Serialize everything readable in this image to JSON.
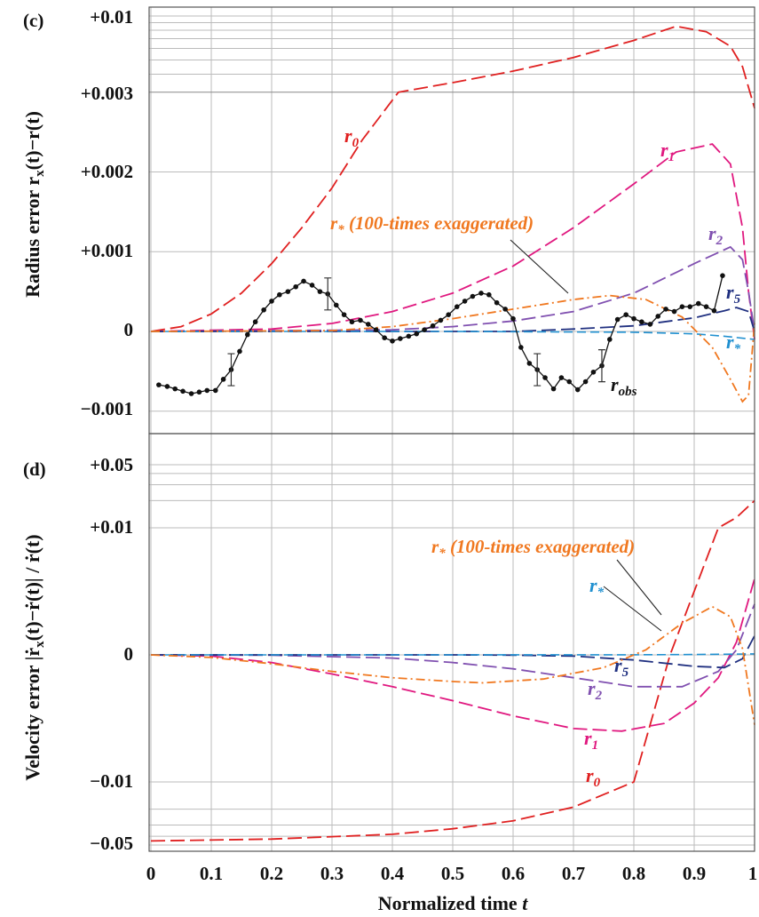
{
  "chart_data": [
    {
      "panel_label": "(c)",
      "type": "line",
      "ylabel": "Radius error r_x(t)−r(t)",
      "xlabel": "Normalized time t",
      "xlim": [
        0,
        1
      ],
      "ylim": [
        -0.0013,
        0.01
      ],
      "y_scale": "piecewise: linear from -0.0013 to +0.003, log-compressed from +0.003 to +0.01",
      "grid": true,
      "y_tick_labels": [
        "+0.01",
        "+0.003",
        "+0.002",
        "+0.001",
        "0",
        "−0.001"
      ],
      "x_tick_labels": [
        "0",
        "0.1",
        "0.2",
        "0.3",
        "0.4",
        "0.5",
        "0.6",
        "0.7",
        "0.8",
        "0.9",
        "1"
      ],
      "series": [
        {
          "name": "r0",
          "color": "#e02020",
          "style": "long-dash",
          "x": [
            0,
            0.05,
            0.1,
            0.15,
            0.2,
            0.25,
            0.3,
            0.35,
            0.41,
            0.5,
            0.6,
            0.7,
            0.8,
            0.87,
            0.92,
            0.96,
            0.98,
            1.0
          ],
          "y": [
            0,
            6e-05,
            0.00022,
            0.00048,
            0.00085,
            0.0013,
            0.0018,
            0.0024,
            0.003,
            0.0035,
            0.0042,
            0.0052,
            0.0068,
            0.0085,
            0.0078,
            0.0062,
            0.0045,
            0.0028
          ]
        },
        {
          "name": "r1",
          "color": "#e0187f",
          "style": "long-dash",
          "x": [
            0,
            0.2,
            0.3,
            0.4,
            0.5,
            0.6,
            0.7,
            0.8,
            0.87,
            0.93,
            0.96,
            0.98,
            0.99,
            1.0
          ],
          "y": [
            0,
            3e-05,
            0.0001,
            0.00025,
            0.00048,
            0.00082,
            0.0013,
            0.00185,
            0.00225,
            0.00235,
            0.0021,
            0.0013,
            0.0005,
            -0.0001
          ]
        },
        {
          "name": "r2",
          "color": "#8050b0",
          "style": "long-dash",
          "x": [
            0,
            0.4,
            0.5,
            0.6,
            0.7,
            0.8,
            0.9,
            0.96,
            0.98,
            0.99,
            1.0
          ],
          "y": [
            0,
            2e-05,
            6e-05,
            0.00013,
            0.00025,
            0.00048,
            0.00085,
            0.00106,
            0.0009,
            0.0005,
            0.0
          ]
        },
        {
          "name": "r5",
          "color": "#203080",
          "style": "long-dash",
          "x": [
            0,
            0.6,
            0.7,
            0.8,
            0.9,
            0.95,
            0.97,
            0.99,
            1.0
          ],
          "y": [
            0,
            0.0,
            3e-05,
            7e-05,
            0.00017,
            0.00026,
            0.0003,
            0.00025,
            0.0
          ]
        },
        {
          "name": "r*",
          "color": "#2090d0",
          "style": "dash",
          "x": [
            0,
            0.5,
            0.8,
            0.9,
            0.95,
            1.0
          ],
          "y": [
            0,
            0.0,
            -1e-05,
            -3e-05,
            -6e-05,
            -0.0001
          ]
        },
        {
          "name": "r* (100-times exaggerated)",
          "color": "#f07820",
          "style": "dash-dot",
          "x": [
            0,
            0.3,
            0.4,
            0.5,
            0.6,
            0.7,
            0.76,
            0.82,
            0.88,
            0.93,
            0.96,
            0.98,
            0.99,
            1.0
          ],
          "y": [
            0,
            1e-05,
            6e-05,
            0.00016,
            0.00028,
            0.0004,
            0.00045,
            0.0004,
            0.00018,
            -0.0002,
            -0.0006,
            -0.00088,
            -0.0008,
            0.0001
          ]
        },
        {
          "name": "robs",
          "color": "#111111",
          "style": "solid-with-dots",
          "x": [
            0.013,
            0.027,
            0.04,
            0.053,
            0.067,
            0.08,
            0.093,
            0.107,
            0.12,
            0.133,
            0.147,
            0.16,
            0.173,
            0.187,
            0.2,
            0.213,
            0.227,
            0.24,
            0.253,
            0.267,
            0.28,
            0.293,
            0.307,
            0.32,
            0.333,
            0.347,
            0.36,
            0.373,
            0.387,
            0.4,
            0.413,
            0.427,
            0.44,
            0.453,
            0.467,
            0.48,
            0.493,
            0.507,
            0.52,
            0.533,
            0.547,
            0.56,
            0.573,
            0.587,
            0.6,
            0.613,
            0.627,
            0.64,
            0.653,
            0.667,
            0.68,
            0.693,
            0.707,
            0.72,
            0.733,
            0.747,
            0.76,
            0.773,
            0.787,
            0.8,
            0.813,
            0.827,
            0.84,
            0.853,
            0.867,
            0.88,
            0.893,
            0.907,
            0.92,
            0.933,
            0.947
          ],
          "y": [
            -0.00067,
            -0.00069,
            -0.00072,
            -0.00075,
            -0.00078,
            -0.00076,
            -0.00074,
            -0.00074,
            -0.0006,
            -0.00048,
            -0.00025,
            -4e-05,
            0.00012,
            0.00027,
            0.00038,
            0.00046,
            0.0005,
            0.00056,
            0.00063,
            0.00058,
            0.0005,
            0.00047,
            0.00033,
            0.00021,
            0.00012,
            0.00014,
            9e-05,
            2e-05,
            -8e-05,
            -0.00012,
            -9e-05,
            -6e-05,
            -3e-05,
            2e-05,
            7e-05,
            0.00014,
            0.00021,
            0.00031,
            0.00038,
            0.00044,
            0.00048,
            0.00046,
            0.00036,
            0.00028,
            0.00016,
            -0.0002,
            -0.0004,
            -0.00048,
            -0.00058,
            -0.00072,
            -0.00058,
            -0.00063,
            -0.00073,
            -0.00063,
            -0.00051,
            -0.00043,
            -0.0001,
            0.00015,
            0.00021,
            0.00016,
            0.00012,
            9e-05,
            0.00019,
            0.00028,
            0.00025,
            0.00031,
            0.00031,
            0.00035,
            0.00031,
            0.00026,
            0.0007
          ],
          "error_bars_at_x": [
            0.133,
            0.293,
            0.64,
            0.747
          ]
        }
      ],
      "annotations": [
        "r0",
        "r1",
        "r2",
        "r5",
        "r*",
        "robs",
        "r* (100-times exaggerated)"
      ]
    },
    {
      "panel_label": "(d)",
      "type": "line",
      "ylabel": "Velocity error |ṙ_x(t)−ṙ(t)| / ṙ(t)",
      "xlabel": "Normalized time t",
      "xlim": [
        0,
        1
      ],
      "ylim": [
        -0.05,
        0.05
      ],
      "y_scale": "piecewise: log-compressed beyond ±0.01, linear between",
      "grid": true,
      "y_tick_labels": [
        "+0.05",
        "+0.01",
        "0",
        "−0.01",
        "−0.05"
      ],
      "x_tick_labels": [
        "0",
        "0.1",
        "0.2",
        "0.3",
        "0.4",
        "0.5",
        "0.6",
        "0.7",
        "0.8",
        "0.9",
        "1"
      ],
      "series": [
        {
          "name": "r0",
          "color": "#e02020",
          "style": "long-dash",
          "x": [
            0,
            0.2,
            0.4,
            0.5,
            0.6,
            0.7,
            0.8,
            0.86,
            0.94,
            0.97,
            1.0
          ],
          "y": [
            -0.045,
            -0.043,
            -0.038,
            -0.033,
            -0.027,
            -0.019,
            -0.01,
            0.0,
            0.01,
            0.013,
            0.02
          ]
        },
        {
          "name": "r1",
          "color": "#e0187f",
          "style": "long-dash",
          "x": [
            0,
            0.1,
            0.2,
            0.3,
            0.4,
            0.5,
            0.6,
            0.7,
            0.78,
            0.85,
            0.9,
            0.94,
            0.97,
            1.0
          ],
          "y": [
            0,
            -0.0001,
            -0.0006,
            -0.0015,
            -0.0025,
            -0.0036,
            -0.0048,
            -0.0058,
            -0.006,
            -0.0054,
            -0.0038,
            -0.0018,
            0.001,
            0.006
          ]
        },
        {
          "name": "r2",
          "color": "#8050b0",
          "style": "long-dash",
          "x": [
            0,
            0.2,
            0.4,
            0.5,
            0.6,
            0.7,
            0.8,
            0.88,
            0.94,
            0.97,
            1.0
          ],
          "y": [
            0,
            -3e-05,
            -0.00025,
            -0.0006,
            -0.0011,
            -0.0018,
            -0.0025,
            -0.0025,
            -0.0013,
            0.0004,
            0.004
          ]
        },
        {
          "name": "r5",
          "color": "#203080",
          "style": "long-dash",
          "x": [
            0,
            0.5,
            0.6,
            0.7,
            0.8,
            0.9,
            0.95,
            0.98,
            1.0
          ],
          "y": [
            0,
            0.0,
            -2e-05,
            -0.0001,
            -0.0004,
            -0.0009,
            -0.001,
            -0.0003,
            0.0015
          ]
        },
        {
          "name": "r*",
          "color": "#2090d0",
          "style": "dash",
          "x": [
            0,
            0.5,
            0.8,
            0.9,
            0.95,
            1.0
          ],
          "y": [
            0,
            0.0,
            1e-05,
            3e-05,
            5e-05,
            8e-05
          ]
        },
        {
          "name": "r* (100-times exaggerated)",
          "color": "#f07820",
          "style": "dash-dot",
          "x": [
            0,
            0.1,
            0.2,
            0.3,
            0.4,
            0.5,
            0.55,
            0.65,
            0.75,
            0.82,
            0.88,
            0.93,
            0.96,
            0.98,
            1.0
          ],
          "y": [
            0,
            -0.0002,
            -0.0007,
            -0.0013,
            -0.0018,
            -0.0021,
            -0.0022,
            -0.0019,
            -0.001,
            0.0004,
            0.0025,
            0.0038,
            0.003,
            0.0005,
            -0.0055
          ]
        }
      ],
      "annotations": [
        "r0",
        "r1",
        "r2",
        "r5",
        "r*",
        "r* (100-times exaggerated)"
      ]
    }
  ],
  "text": {
    "panel_c": "(c)",
    "panel_d": "(d)",
    "ylabel_c": "Radius error r",
    "ylabel_c_sub": "x",
    "ylabel_c_rest": "(t)−r(t)",
    "ylabel_d": "Velocity error |ṙ",
    "ylabel_d_sub": "x",
    "ylabel_d_rest": "(t)−ṙ(t)| / ṙ(t)",
    "xlabel": "Normalized time ",
    "xlabel_var": "t",
    "c_ticks": [
      "+0.01",
      "+0.003",
      "+0.002",
      "+0.001",
      "0",
      "−0.001"
    ],
    "d_ticks": [
      "+0.05",
      "+0.01",
      "0",
      "−0.01",
      "−0.05"
    ],
    "x_ticks": [
      "0",
      "0.1",
      "0.2",
      "0.3",
      "0.4",
      "0.5",
      "0.6",
      "0.7",
      "0.8",
      "0.9",
      "1"
    ],
    "r_letter": "r",
    "s0": "0",
    "s1": "1",
    "s2": "2",
    "s5": "5",
    "sstar": "*",
    "sobs": "obs",
    "exag": " (100-times exaggerated)"
  }
}
